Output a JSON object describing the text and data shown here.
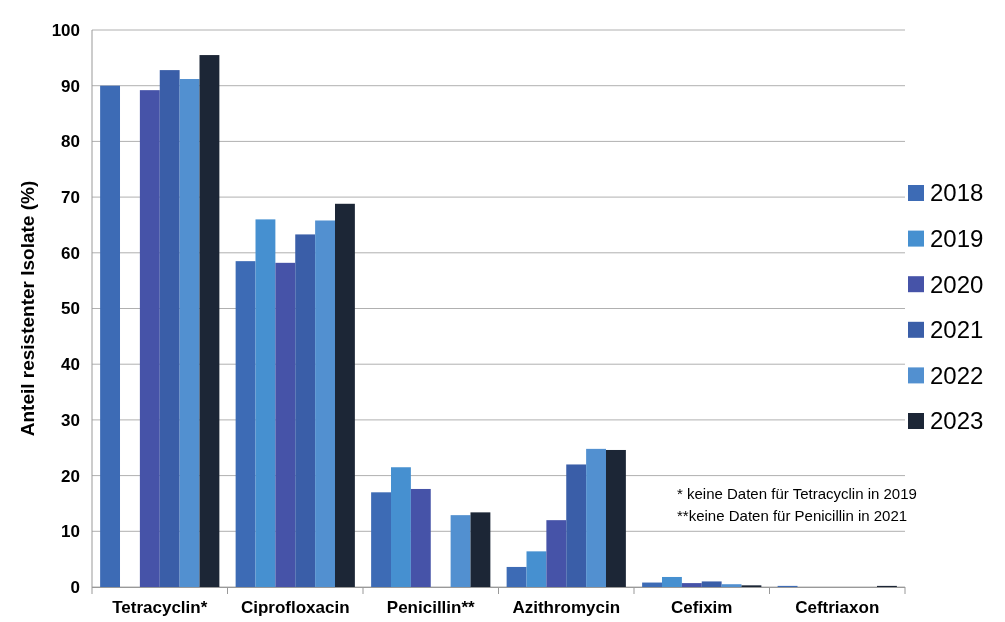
{
  "chart_data": {
    "type": "bar",
    "ylabel": "Anteil resistenter Isolate (%)",
    "categories": [
      "Tetracyclin*",
      "Ciprofloxacin",
      "Penicillin**",
      "Azithromycin",
      "Cefixim",
      "Ceftriaxon"
    ],
    "series": [
      {
        "name": "2018",
        "color": "#3d6bb5",
        "values": [
          90,
          58.5,
          17,
          3.6,
          0.8,
          0.2
        ]
      },
      {
        "name": "2019",
        "color": "#4690d0",
        "values": [
          null,
          66,
          21.5,
          6.4,
          1.8,
          0
        ]
      },
      {
        "name": "2020",
        "color": "#4653a8",
        "values": [
          89.2,
          58.2,
          17.6,
          12,
          0.7,
          0
        ]
      },
      {
        "name": "2021",
        "color": "#3a5ea8",
        "values": [
          92.8,
          63.3,
          null,
          22,
          1,
          0
        ]
      },
      {
        "name": "2022",
        "color": "#5290d0",
        "values": [
          91.2,
          65.8,
          12.9,
          24.8,
          0.5,
          0
        ]
      },
      {
        "name": "2023",
        "color": "#1c2636",
        "values": [
          95.5,
          68.8,
          13.4,
          24.6,
          0.3,
          0.2
        ]
      }
    ],
    "ylim": [
      0,
      100
    ],
    "yticks": [
      0,
      10,
      20,
      30,
      40,
      50,
      60,
      70,
      80,
      90,
      100
    ],
    "grid": "y",
    "legend": "right",
    "annotations": [
      "* keine Daten für Tetracyclin in 2019",
      "**keine Daten für Penicillin in 2021"
    ]
  }
}
